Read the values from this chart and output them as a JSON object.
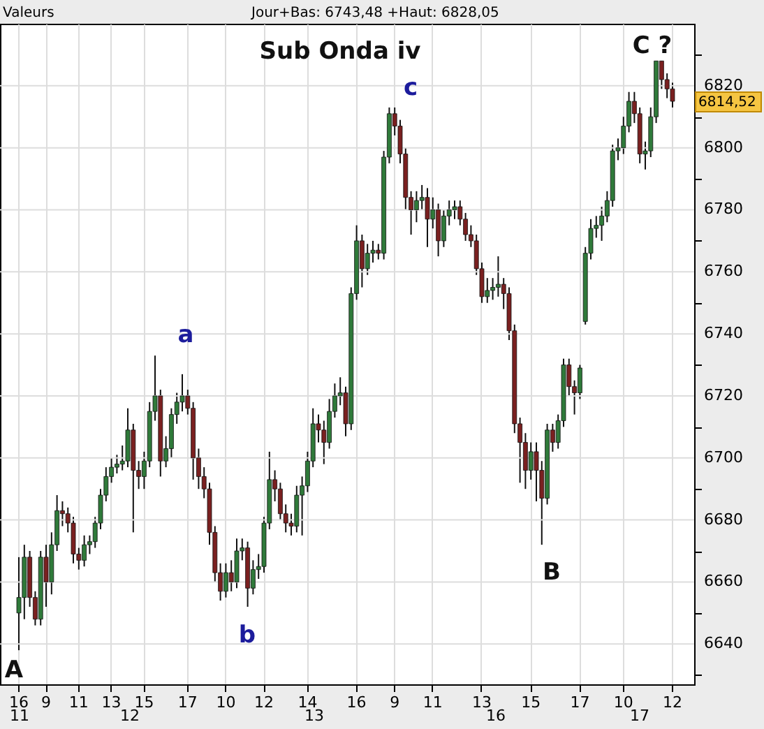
{
  "chart_data": {
    "type": "candlestick",
    "title": "Sub Onda iv",
    "annotations": [
      "Valeurs",
      "Jour+Bas: 6743,48 +Haut: 6828,05",
      "11",
      "12",
      "13",
      "16",
      "17",
      "a",
      "b",
      "c",
      "A",
      "B",
      "C ?",
      "6814,52"
    ],
    "categories": [
      "16",
      null,
      null,
      null,
      null,
      "9",
      null,
      null,
      null,
      null,
      null,
      "11",
      null,
      null,
      null,
      null,
      null,
      "13",
      null,
      null,
      null,
      null,
      null,
      "15",
      null,
      null,
      null,
      null,
      null,
      null,
      null,
      "17",
      null,
      null,
      null,
      null,
      null,
      null,
      "10",
      null,
      null,
      null,
      null,
      null,
      null,
      "12",
      null,
      null,
      null,
      null,
      null,
      null,
      null,
      "14",
      null,
      null,
      null,
      null,
      null,
      null,
      null,
      null,
      "16",
      null,
      null,
      null,
      null,
      null,
      null,
      "9",
      null,
      null,
      null,
      null,
      null,
      null,
      "11",
      null,
      null,
      null,
      null,
      null,
      null,
      null,
      null,
      "13",
      null,
      null,
      null,
      null,
      null,
      null,
      null,
      null,
      "15",
      null,
      null,
      null,
      null,
      null,
      null,
      null,
      null,
      "17",
      null,
      null,
      null,
      null,
      null,
      null,
      null,
      "10",
      null,
      null,
      null,
      null,
      null,
      null,
      null,
      null,
      "12"
    ],
    "colors": [
      "#2f7a3a",
      "#2f7a3a",
      "#7a2020",
      "#7a2020",
      "#2f7a3a",
      "#7a2020",
      "#2f7a3a",
      "#2f7a3a",
      "#7a2020",
      "#7a2020",
      "#7a2020",
      "#7a2020",
      "#2f7a3a",
      "#2f7a3a",
      "#2f7a3a",
      "#2f7a3a",
      "#2f7a3a",
      "#2f7a3a",
      "#2f7a3a",
      "#2f7a3a",
      "#2f7a3a",
      "#7a2020",
      "#7a2020",
      "#2f7a3a",
      "#2f7a3a",
      "#2f7a3a",
      "#7a2020",
      "#2f7a3a",
      "#2f7a3a",
      "#2f7a3a",
      "#2f7a3a",
      "#7a2020",
      "#7a2020",
      "#7a2020",
      "#7a2020",
      "#7a2020",
      "#7a2020",
      "#7a2020",
      "#2f7a3a",
      "#7a2020",
      "#2f7a3a",
      "#2f7a3a",
      "#7a2020",
      "#2f7a3a",
      "#2f7a3a",
      "#2f7a3a",
      "#2f7a3a",
      "#7a2020",
      "#7a2020",
      "#7a2020",
      "#7a2020",
      "#2f7a3a",
      "#2f7a3a",
      "#2f7a3a",
      "#2f7a3a",
      "#7a2020",
      "#7a2020",
      "#2f7a3a",
      "#2f7a3a",
      "#2f7a3a",
      "#7a2020",
      "#2f7a3a",
      "#2f7a3a",
      "#7a2020",
      "#2f7a3a",
      "#2f7a3a",
      "#7a2020",
      "#2f7a3a",
      "#2f7a3a",
      "#7a2020",
      "#7a2020",
      "#7a2020",
      "#7a2020",
      "#2f7a3a",
      "#2f7a3a",
      "#7a2020",
      "#2f7a3a",
      "#7a2020",
      "#2f7a3a",
      "#2f7a3a",
      "#2f7a3a",
      "#7a2020",
      "#7a2020",
      "#7a2020",
      "#7a2020",
      "#7a2020",
      "#2f7a3a",
      "#2f7a3a",
      "#2f7a3a",
      "#7a2020",
      "#7a2020",
      "#7a2020",
      "#7a2020",
      "#7a2020",
      "#2f7a3a",
      "#7a2020",
      "#7a2020",
      "#2f7a3a",
      "#7a2020",
      "#2f7a3a",
      "#2f7a3a",
      "#7a2020",
      "#7a2020",
      "#2f7a3a",
      "#2f7a3a",
      "#2f7a3a",
      "#2f7a3a",
      "#2f7a3a",
      "#2f7a3a",
      "#2f7a3a",
      "#2f7a3a",
      "#2f7a3a",
      "#2f7a3a",
      "#7a2020",
      "#7a2020",
      "#2f7a3a",
      "#2f7a3a",
      "#2f7a3a",
      "#7a2020",
      "#7a2020",
      "#7a2020"
    ],
    "ohlc": [
      [
        6650,
        6668,
        6638,
        6655
      ],
      [
        6655,
        6672,
        6648,
        6668
      ],
      [
        6668,
        6670,
        6652,
        6655
      ],
      [
        6655,
        6657,
        6646,
        6648
      ],
      [
        6648,
        6670,
        6646,
        6668
      ],
      [
        6668,
        6672,
        6652,
        6660
      ],
      [
        6660,
        6676,
        6656,
        6672
      ],
      [
        6672,
        6688,
        6670,
        6683
      ],
      [
        6683,
        6686,
        6678,
        6682
      ],
      [
        6682,
        6684,
        6676,
        6679
      ],
      [
        6679,
        6681,
        6666,
        6669
      ],
      [
        6669,
        6671,
        6664,
        6667
      ],
      [
        6667,
        6675,
        6665,
        6672
      ],
      [
        6672,
        6675,
        6669,
        6673
      ],
      [
        6673,
        6681,
        6671,
        6679
      ],
      [
        6679,
        6690,
        6677,
        6688
      ],
      [
        6688,
        6697,
        6686,
        6694
      ],
      [
        6694,
        6700,
        6692,
        6697
      ],
      [
        6697,
        6701,
        6695,
        6698
      ],
      [
        6698,
        6704,
        6696,
        6699
      ],
      [
        6699,
        6716,
        6697,
        6709
      ],
      [
        6709,
        6711,
        6676,
        6696
      ],
      [
        6696,
        6699,
        6690,
        6694
      ],
      [
        6694,
        6702,
        6690,
        6699
      ],
      [
        6699,
        6718,
        6697,
        6715
      ],
      [
        6715,
        6733,
        6712,
        6720
      ],
      [
        6720,
        6722,
        6694,
        6699
      ],
      [
        6699,
        6707,
        6697,
        6703
      ],
      [
        6703,
        6716,
        6700,
        6714
      ],
      [
        6714,
        6721,
        6711,
        6718
      ],
      [
        6718,
        6727,
        6715,
        6720
      ],
      [
        6720,
        6722,
        6714,
        6716
      ],
      [
        6716,
        6718,
        6693,
        6700
      ],
      [
        6700,
        6703,
        6690,
        6694
      ],
      [
        6694,
        6697,
        6687,
        6690
      ],
      [
        6690,
        6692,
        6672,
        6676
      ],
      [
        6676,
        6678,
        6660,
        6663
      ],
      [
        6663,
        6666,
        6654,
        6657
      ],
      [
        6657,
        6666,
        6655,
        6663
      ],
      [
        6663,
        6667,
        6657,
        6660
      ],
      [
        6660,
        6674,
        6658,
        6670
      ],
      [
        6670,
        6674,
        6667,
        6671
      ],
      [
        6671,
        6673,
        6652,
        6658
      ],
      [
        6658,
        6667,
        6656,
        6664
      ],
      [
        6664,
        6669,
        6661,
        6665
      ],
      [
        6665,
        6681,
        6663,
        6679
      ],
      [
        6679,
        6702,
        6677,
        6693
      ],
      [
        6693,
        6696,
        6686,
        6690
      ],
      [
        6690,
        6692,
        6680,
        6682
      ],
      [
        6682,
        6685,
        6676,
        6679
      ],
      [
        6679,
        6682,
        6675,
        6678
      ],
      [
        6678,
        6691,
        6676,
        6688
      ],
      [
        6688,
        6694,
        6675,
        6691
      ],
      [
        6691,
        6702,
        6689,
        6699
      ],
      [
        6699,
        6716,
        6697,
        6711
      ],
      [
        6711,
        6714,
        6705,
        6709
      ],
      [
        6709,
        6712,
        6698,
        6705
      ],
      [
        6705,
        6719,
        6703,
        6715
      ],
      [
        6715,
        6724,
        6713,
        6720
      ],
      [
        6720,
        6726,
        6717,
        6721
      ],
      [
        6721,
        6723,
        6707,
        6711
      ],
      [
        6711,
        6755,
        6709,
        6753
      ],
      [
        6753,
        6775,
        6751,
        6770
      ],
      [
        6770,
        6772,
        6755,
        6761
      ],
      [
        6761,
        6769,
        6759,
        6766
      ],
      [
        6766,
        6770,
        6763,
        6767
      ],
      [
        6767,
        6769,
        6764,
        6766
      ],
      [
        6766,
        6799,
        6764,
        6797
      ],
      [
        6797,
        6813,
        6795,
        6811
      ],
      [
        6811,
        6813,
        6804,
        6807
      ],
      [
        6807,
        6809,
        6795,
        6798
      ],
      [
        6798,
        6800,
        6780,
        6784
      ],
      [
        6784,
        6786,
        6772,
        6780
      ],
      [
        6780,
        6786,
        6776,
        6783
      ],
      [
        6783,
        6788,
        6780,
        6784
      ],
      [
        6784,
        6787,
        6768,
        6777
      ],
      [
        6777,
        6784,
        6774,
        6780
      ],
      [
        6780,
        6782,
        6765,
        6770
      ],
      [
        6770,
        6780,
        6768,
        6778
      ],
      [
        6778,
        6783,
        6775,
        6780
      ],
      [
        6780,
        6783,
        6777,
        6781
      ],
      [
        6781,
        6783,
        6775,
        6777
      ],
      [
        6777,
        6779,
        6770,
        6772
      ],
      [
        6772,
        6775,
        6768,
        6770
      ],
      [
        6770,
        6772,
        6759,
        6761
      ],
      [
        6761,
        6763,
        6750,
        6752
      ],
      [
        6752,
        6758,
        6750,
        6754
      ],
      [
        6754,
        6758,
        6751,
        6755
      ],
      [
        6755,
        6765,
        6752,
        6756
      ],
      [
        6756,
        6758,
        6748,
        6753
      ],
      [
        6753,
        6755,
        6738,
        6741
      ],
      [
        6741,
        6743,
        6708,
        6711
      ],
      [
        6711,
        6713,
        6692,
        6705
      ],
      [
        6705,
        6708,
        6690,
        6696
      ],
      [
        6696,
        6705,
        6693,
        6702
      ],
      [
        6702,
        6705,
        6686,
        6696
      ],
      [
        6696,
        6699,
        6672,
        6687
      ],
      [
        6687,
        6711,
        6685,
        6709
      ],
      [
        6709,
        6711,
        6702,
        6705
      ],
      [
        6705,
        6714,
        6703,
        6712
      ],
      [
        6712,
        6732,
        6710,
        6730
      ],
      [
        6730,
        6732,
        6720,
        6723
      ],
      [
        6723,
        6725,
        6714,
        6721
      ],
      [
        6721,
        6730,
        6719,
        6729
      ],
      [
        6744,
        6768,
        6743,
        6766
      ],
      [
        6766,
        6777,
        6764,
        6774
      ],
      [
        6774,
        6778,
        6771,
        6775
      ],
      [
        6775,
        6781,
        6770,
        6778
      ],
      [
        6778,
        6786,
        6776,
        6783
      ],
      [
        6783,
        6801,
        6781,
        6799
      ],
      [
        6799,
        6803,
        6796,
        6800
      ],
      [
        6800,
        6810,
        6798,
        6807
      ],
      [
        6807,
        6818,
        6805,
        6815
      ],
      [
        6815,
        6818,
        6808,
        6811
      ],
      [
        6811,
        6813,
        6795,
        6798
      ],
      [
        6798,
        6802,
        6793,
        6799
      ],
      [
        6799,
        6813,
        6797,
        6810
      ],
      [
        6810,
        6828,
        6808,
        6828
      ],
      [
        6828,
        6828,
        6819,
        6822
      ],
      [
        6822,
        6824,
        6816,
        6819
      ],
      [
        6819,
        6821,
        6813,
        6815
      ]
    ],
    "ylim": [
      6627,
      6840
    ],
    "yticks": [
      {
        "value": 6630,
        "label": null
      },
      6640,
      {
        "value": 6650,
        "label": null
      },
      6660,
      {
        "value": 6670,
        "label": null
      },
      6680,
      {
        "value": 6690,
        "label": null
      },
      6700,
      {
        "value": 6710,
        "label": null
      },
      6720,
      {
        "value": 6730,
        "label": null
      },
      6740,
      {
        "value": 6750,
        "label": null
      },
      6760,
      {
        "value": 6770,
        "label": null
      },
      6780,
      {
        "value": 6790,
        "label": null
      },
      6800,
      {
        "value": 6810,
        "label": null
      },
      6820,
      {
        "value": 6830,
        "label": null
      }
    ],
    "grid": true
  }
}
